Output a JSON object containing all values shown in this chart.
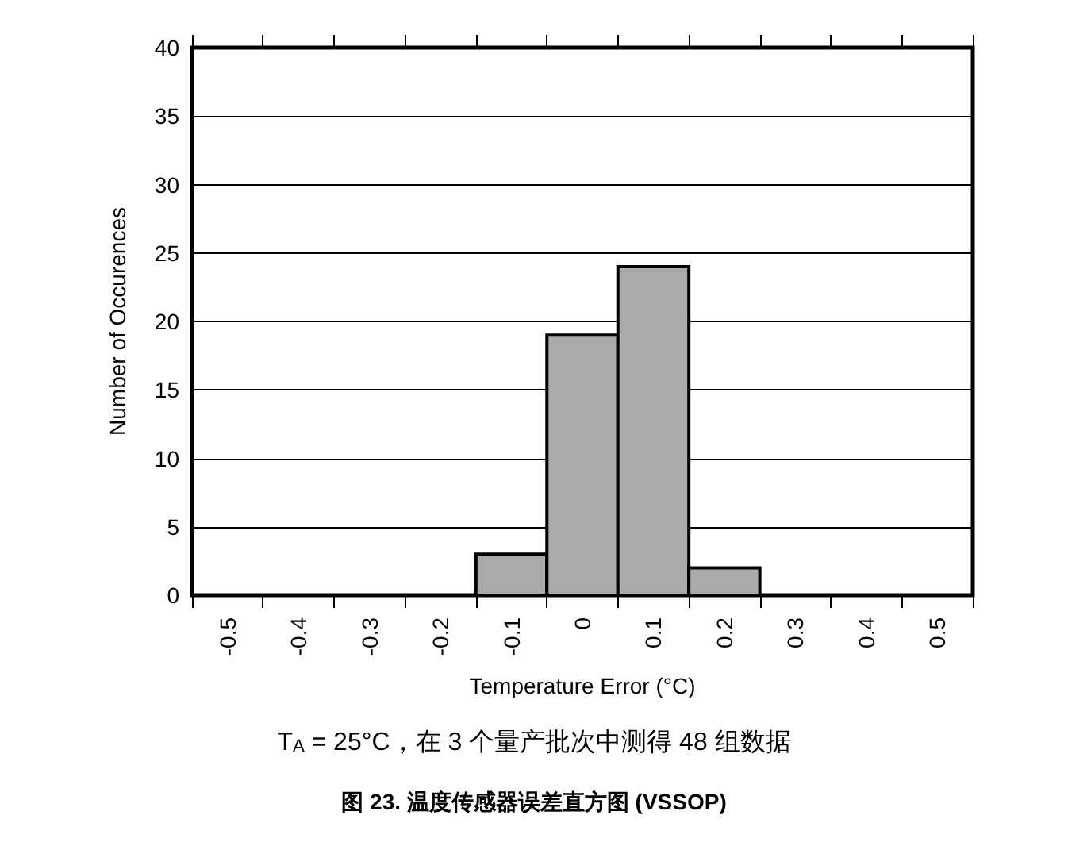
{
  "chart_data": {
    "type": "histogram",
    "title": "图 23. 温度传感器误差直方图 (VSSOP)",
    "xlabel": "Temperature Error (°C)",
    "ylabel": "Number of Occurences",
    "annotations": [
      "T$_{A}$ = 25°C，在 3 个量产批次中测得 48 组数据"
    ],
    "bins": [
      -0.55,
      -0.45,
      -0.35,
      -0.25,
      -0.15,
      -0.05,
      0.05,
      0.15,
      0.25,
      0.35,
      0.45,
      0.55
    ],
    "values": [
      0,
      0,
      0,
      0,
      3,
      19,
      24,
      2,
      0,
      0,
      0
    ],
    "color": "#aaaaaa",
    "xlim": [
      -0.55,
      0.55
    ],
    "xticks": [
      -0.5,
      -0.4,
      -0.3,
      -0.2,
      -0.1,
      0,
      0.1,
      0.2,
      0.3,
      0.4,
      0.5
    ],
    "ylim": [
      0,
      40
    ],
    "yticks": [
      0,
      5,
      10,
      15,
      20,
      25,
      30,
      35,
      40
    ],
    "grid": "y"
  }
}
